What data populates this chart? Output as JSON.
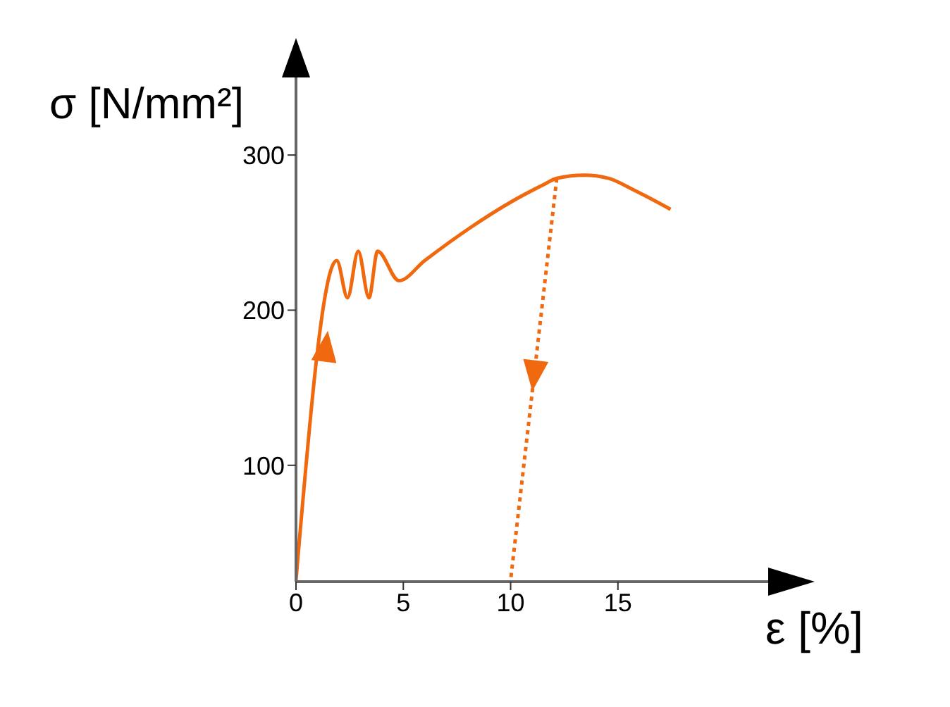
{
  "chart_data": {
    "type": "line",
    "xlabel": "ε [%]",
    "ylabel": "σ [N/mm²]",
    "xlim": [
      0,
      22
    ],
    "ylim": [
      25,
      350
    ],
    "xticks": [
      0,
      5,
      10,
      15
    ],
    "yticks": [
      100,
      200,
      300
    ],
    "marker": "none",
    "series": [
      {
        "color": "#f0690f",
        "line_style": "solid",
        "x": [
          0,
          1.9,
          2.4,
          2.9,
          3.4,
          3.8,
          4.8,
          6.0,
          8.1,
          10.05,
          11.55,
          12.15,
          13.45,
          14.55,
          15.8,
          17.45
        ],
        "values": [
          26,
          232,
          208,
          238,
          208,
          238,
          219,
          232,
          253,
          270,
          281,
          285,
          287,
          285,
          277,
          265
        ]
      },
      {
        "color": "#f0690f",
        "line_style": "dotted",
        "x": [
          12.15,
          10
        ],
        "values": [
          285,
          26
        ]
      }
    ]
  }
}
